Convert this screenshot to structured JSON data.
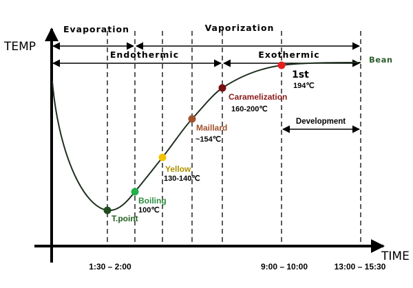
{
  "axes": {
    "y_label": "TEMP",
    "x_label": "TIME",
    "tick_labels": [
      "1:30 – 2:00",
      "9:00 – 10:00",
      "13:00 – 15:30"
    ]
  },
  "phases": {
    "evaporation": "Evaporation",
    "vaporization": "Vaporization",
    "endothermic": "Endothermic",
    "exothermic": "Exothermic",
    "development": "Development"
  },
  "curve_label": "Bean",
  "points": [
    {
      "name": "T.point",
      "value": "",
      "color": "#1f4d1f"
    },
    {
      "name": "Boiling",
      "value": "100℃",
      "color": "#22b04a"
    },
    {
      "name": "Yellow",
      "value": "130-140℃",
      "color": "#f2c200"
    },
    {
      "name": "Maillard",
      "value": "~154℃",
      "color": "#a0522d"
    },
    {
      "name": "Caramelization",
      "value": "160-200℃",
      "color": "#7a1010"
    },
    {
      "name": "1st",
      "value": "194℃",
      "color": "#e61e1e"
    }
  ],
  "colors": {
    "axis": "#000000",
    "curve": "#1e2e1e",
    "bean_label": "#2e5e2e",
    "boiling_text": "#2e8b3e",
    "yellow_text": "#b09000",
    "maillard_text": "#a0522d",
    "caramel_text": "#8b1a1a",
    "tpoint_text": "#1f5f1f"
  }
}
